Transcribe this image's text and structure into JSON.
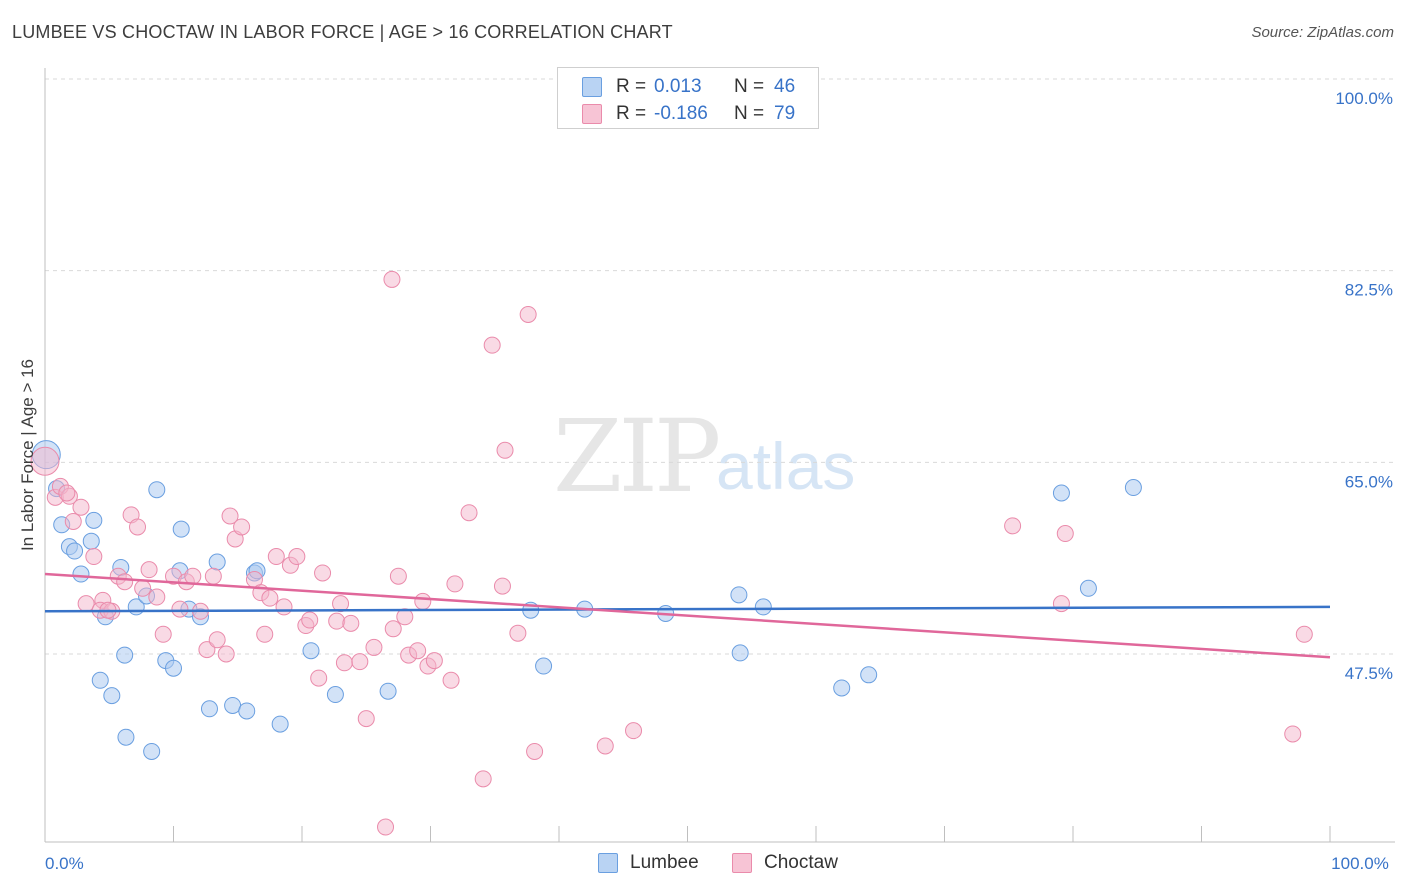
{
  "header": {
    "title": "LUMBEE VS CHOCTAW IN LABOR FORCE | AGE > 16 CORRELATION CHART",
    "source": "Source: ZipAtlas.com"
  },
  "watermark": {
    "zip": "ZIP",
    "atlas": "atlas"
  },
  "legend_top": {
    "rows": [
      {
        "r_label": "R =",
        "r_value": "0.013",
        "n_label": "N =",
        "n_value": "46",
        "fill": "#b9d3f3",
        "stroke": "#6a9fe0"
      },
      {
        "r_label": "R =",
        "r_value": "-0.186",
        "n_label": "N =",
        "n_value": "79",
        "fill": "#f7c4d5",
        "stroke": "#ea8bab"
      }
    ]
  },
  "legend_bottom": {
    "items": [
      {
        "label": "Lumbee",
        "fill": "#b9d3f3",
        "stroke": "#6a9fe0"
      },
      {
        "label": "Choctaw",
        "fill": "#f7c4d5",
        "stroke": "#ea8bab"
      }
    ]
  },
  "chart_data": {
    "type": "scatter",
    "title": "LUMBEE VS CHOCTAW IN LABOR FORCE | AGE > 16 CORRELATION CHART",
    "ylabel": "In Labor Force | Age > 16",
    "xlabel": "",
    "xlim": [
      0,
      100
    ],
    "ylim": [
      32.5,
      103
    ],
    "x_tick_labels": [
      {
        "value": 0,
        "label": "0.0%"
      },
      {
        "value": 100,
        "label": "100.0%"
      }
    ],
    "y_tick_labels": [
      {
        "value": 100,
        "label": "100.0%"
      },
      {
        "value": 82.5,
        "label": "82.5%"
      },
      {
        "value": 65,
        "label": "65.0%"
      },
      {
        "value": 47.5,
        "label": "47.5%"
      }
    ],
    "grid": true,
    "legend_position": "top-center",
    "colors": {
      "Lumbee": "#3873c8",
      "Choctaw": "#e0679a",
      "axis_text": "#3873c8"
    },
    "series": [
      {
        "name": "Lumbee",
        "fill": "rgba(173,203,240,0.55)",
        "stroke": "#6a9fe0",
        "trend": {
          "x": [
            0,
            100
          ],
          "y": [
            51.4,
            51.8
          ]
        },
        "points": [
          [
            0.1,
            65.7
          ],
          [
            0.9,
            62.6
          ],
          [
            1.3,
            59.3
          ],
          [
            1.9,
            57.3
          ],
          [
            2.3,
            56.9
          ],
          [
            2.8,
            54.8
          ],
          [
            3.8,
            59.7
          ],
          [
            3.6,
            57.8
          ],
          [
            4.7,
            50.9
          ],
          [
            5.9,
            55.4
          ],
          [
            6.2,
            47.4
          ],
          [
            4.3,
            45.1
          ],
          [
            5.2,
            43.7
          ],
          [
            6.3,
            39.9
          ],
          [
            7.1,
            51.8
          ],
          [
            7.9,
            52.8
          ],
          [
            8.7,
            62.5
          ],
          [
            9.4,
            46.9
          ],
          [
            10.0,
            46.2
          ],
          [
            10.6,
            58.9
          ],
          [
            10.5,
            55.1
          ],
          [
            11.2,
            51.6
          ],
          [
            12.1,
            50.9
          ],
          [
            12.8,
            42.5
          ],
          [
            13.4,
            55.9
          ],
          [
            14.6,
            42.8
          ],
          [
            15.7,
            42.3
          ],
          [
            16.3,
            54.9
          ],
          [
            16.5,
            55.1
          ],
          [
            18.3,
            41.1
          ],
          [
            20.7,
            47.8
          ],
          [
            22.6,
            43.8
          ],
          [
            8.3,
            38.6
          ],
          [
            26.7,
            44.1
          ],
          [
            37.8,
            51.5
          ],
          [
            38.8,
            46.4
          ],
          [
            42.0,
            51.6
          ],
          [
            48.3,
            51.2
          ],
          [
            54.0,
            52.9
          ],
          [
            54.1,
            47.6
          ],
          [
            55.9,
            51.8
          ],
          [
            62.0,
            44.4
          ],
          [
            64.1,
            45.6
          ],
          [
            79.1,
            62.2
          ],
          [
            81.2,
            53.5
          ],
          [
            84.7,
            62.7
          ]
        ]
      },
      {
        "name": "Choctaw",
        "fill": "rgba(244,182,204,0.5)",
        "stroke": "#ea8bab",
        "trend": {
          "x": [
            0,
            100
          ],
          "y": [
            54.8,
            47.2
          ]
        },
        "points": [
          [
            0.0,
            65.1
          ],
          [
            0.8,
            61.8
          ],
          [
            1.2,
            62.8
          ],
          [
            1.9,
            61.9
          ],
          [
            2.2,
            59.6
          ],
          [
            2.8,
            60.9
          ],
          [
            3.2,
            52.1
          ],
          [
            3.8,
            56.4
          ],
          [
            4.5,
            52.4
          ],
          [
            4.3,
            51.5
          ],
          [
            5.2,
            51.4
          ],
          [
            5.7,
            54.6
          ],
          [
            6.2,
            54.1
          ],
          [
            6.7,
            60.2
          ],
          [
            7.2,
            59.1
          ],
          [
            7.6,
            53.5
          ],
          [
            8.1,
            55.2
          ],
          [
            8.7,
            52.7
          ],
          [
            9.2,
            49.3
          ],
          [
            10.0,
            54.6
          ],
          [
            10.5,
            51.6
          ],
          [
            11.0,
            54.1
          ],
          [
            11.5,
            54.6
          ],
          [
            12.1,
            51.4
          ],
          [
            12.6,
            47.9
          ],
          [
            13.1,
            54.6
          ],
          [
            13.4,
            48.8
          ],
          [
            14.1,
            47.5
          ],
          [
            14.4,
            60.1
          ],
          [
            14.8,
            58.0
          ],
          [
            15.3,
            59.1
          ],
          [
            16.3,
            54.3
          ],
          [
            16.8,
            53.1
          ],
          [
            17.1,
            49.3
          ],
          [
            17.5,
            52.6
          ],
          [
            18.0,
            56.4
          ],
          [
            18.6,
            51.8
          ],
          [
            19.1,
            55.6
          ],
          [
            19.6,
            56.4
          ],
          [
            20.3,
            50.1
          ],
          [
            20.6,
            50.6
          ],
          [
            21.3,
            45.3
          ],
          [
            21.6,
            54.9
          ],
          [
            22.7,
            50.5
          ],
          [
            23.0,
            52.1
          ],
          [
            23.3,
            46.7
          ],
          [
            23.8,
            50.3
          ],
          [
            24.5,
            46.8
          ],
          [
            25.0,
            41.6
          ],
          [
            25.6,
            48.1
          ],
          [
            26.5,
            31.7
          ],
          [
            27.1,
            49.8
          ],
          [
            27.5,
            54.6
          ],
          [
            28.0,
            50.9
          ],
          [
            28.3,
            47.4
          ],
          [
            29.0,
            47.8
          ],
          [
            29.4,
            52.3
          ],
          [
            29.8,
            46.4
          ],
          [
            30.3,
            46.9
          ],
          [
            31.6,
            45.1
          ],
          [
            31.9,
            53.9
          ],
          [
            33.0,
            60.4
          ],
          [
            34.1,
            36.1
          ],
          [
            34.8,
            75.7
          ],
          [
            35.6,
            53.7
          ],
          [
            35.8,
            66.1
          ],
          [
            36.8,
            49.4
          ],
          [
            37.6,
            78.5
          ],
          [
            38.1,
            38.6
          ],
          [
            43.6,
            39.1
          ],
          [
            45.8,
            40.5
          ],
          [
            27.0,
            81.7
          ],
          [
            75.3,
            59.2
          ],
          [
            79.1,
            52.1
          ],
          [
            79.4,
            58.5
          ],
          [
            97.1,
            40.2
          ],
          [
            98.0,
            49.3
          ],
          [
            1.7,
            62.2
          ],
          [
            4.9,
            51.5
          ]
        ]
      }
    ]
  }
}
